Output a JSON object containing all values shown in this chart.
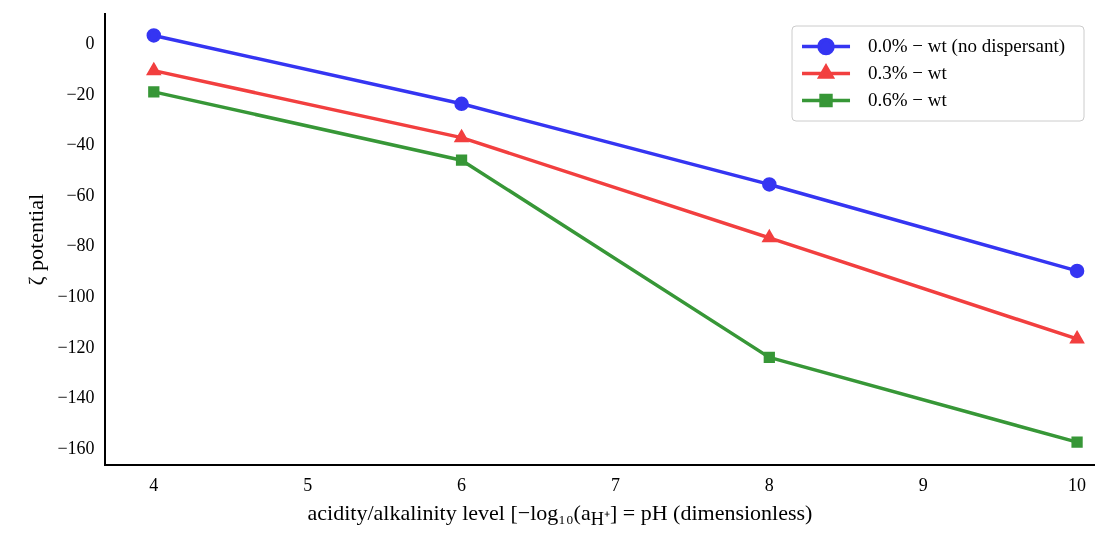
{
  "chart_data": {
    "type": "line",
    "xlabel": "acidity/alkalinity level [−log₁₀(a$_{H⁺}$] = pH (dimensionless)",
    "ylabel": "ζ potential",
    "x": [
      4,
      6,
      8,
      10
    ],
    "series": [
      {
        "name": "0.0% − wt (no dispersant)",
        "color": "#3535f2",
        "marker": "circle",
        "values": [
          3.5,
          -23.5,
          -55.4,
          -89.6
        ]
      },
      {
        "name": "0.3% − wt",
        "color": "#f23f3f",
        "marker": "triangle",
        "values": [
          -10.4,
          -36.9,
          -76.5,
          -116.5
        ]
      },
      {
        "name": "0.6% − wt",
        "color": "#379737",
        "marker": "square",
        "values": [
          -18.8,
          -45.8,
          -123.8,
          -157.3
        ]
      }
    ],
    "xlim": [
      3.68,
      10.11
    ],
    "xticks": [
      4,
      5,
      6,
      7,
      8,
      9,
      10
    ],
    "ylim": [
      -166.5,
      12
    ],
    "yticks": [
      0,
      -20,
      -40,
      -60,
      -80,
      -100,
      -120,
      -140,
      -160
    ],
    "grid": false,
    "legend": "top right",
    "line_style": "solid"
  }
}
